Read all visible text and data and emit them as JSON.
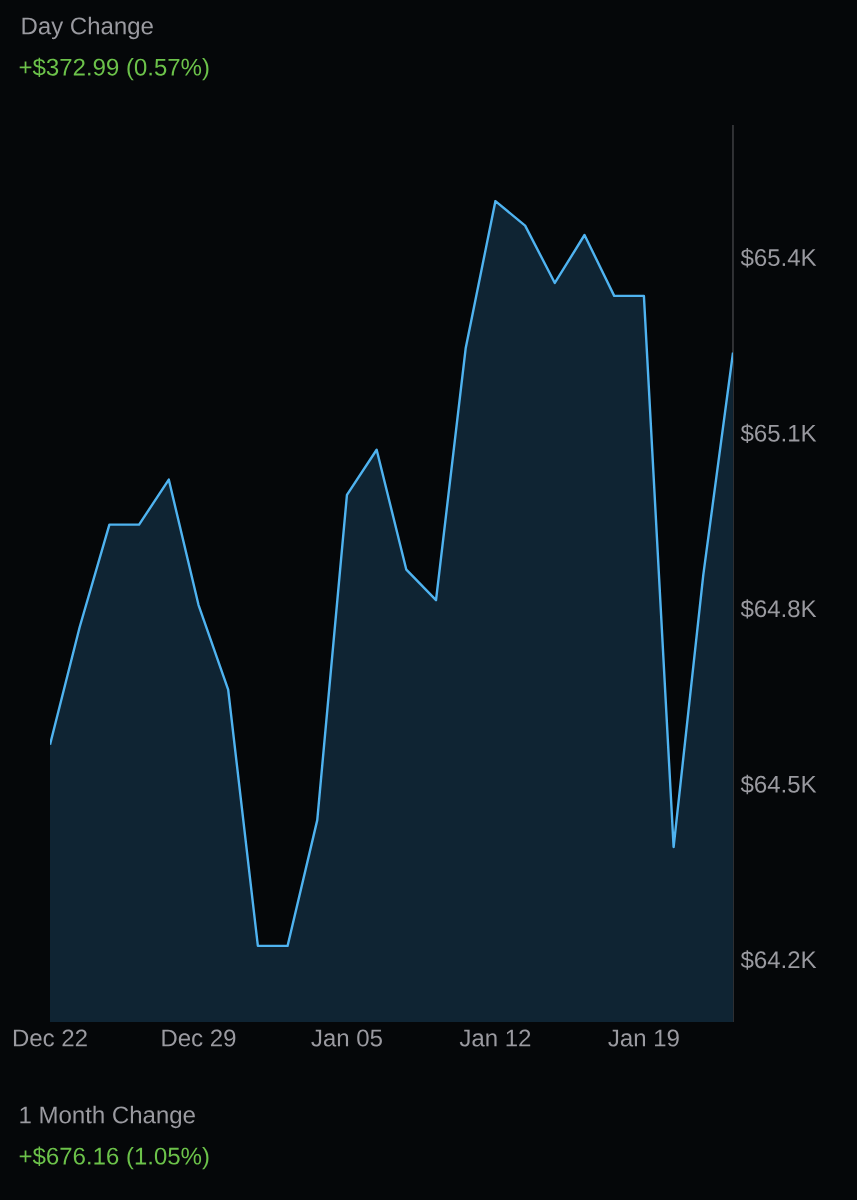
{
  "chart_data": {
    "type": "area",
    "title": "Day Change",
    "subtitle": "+$372.99 (0.57%)",
    "categories": [
      "Dec 22",
      null,
      null,
      null,
      null,
      "Dec 29",
      null,
      null,
      null,
      null,
      "Jan 05",
      null,
      null,
      null,
      null,
      "Jan 12",
      null,
      null,
      null,
      null,
      "Jan 19",
      null,
      null,
      null
    ],
    "series": [
      {
        "color": "#4fb3f0",
        "values": [
          64568,
          64769,
          64944,
          64944,
          65021,
          64807,
          64662,
          64224,
          64224,
          64439,
          64995,
          65072,
          64867,
          64815,
          65246,
          65497,
          65455,
          65357,
          65439,
          65335,
          65335,
          64393,
          64858,
          65238
        ]
      }
    ],
    "ylim": [
      64094,
      65627
    ],
    "yticks": [
      {
        "value": 64200,
        "label": "$64.2K"
      },
      {
        "value": 64500,
        "label": "$64.5K"
      },
      {
        "value": 64800,
        "label": "$64.8K"
      },
      {
        "value": 65100,
        "label": "$65.1K"
      },
      {
        "value": 65400,
        "label": "$65.4K"
      }
    ],
    "annotations": [
      "1 Month Change",
      "+$676.16 (1.05%)"
    ]
  }
}
